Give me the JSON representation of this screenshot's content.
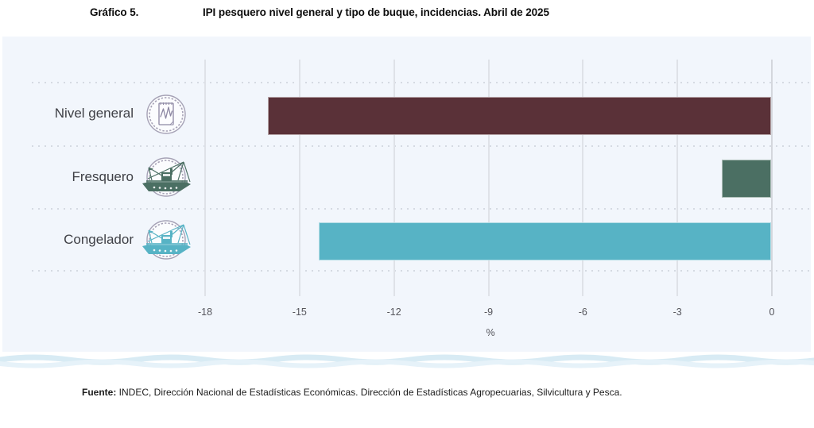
{
  "header": {
    "label": "Gráfico 5.",
    "title": "IPI pesquero nivel general y tipo de buque, incidencias. Abril de 2025"
  },
  "chart_data": {
    "type": "bar",
    "orientation": "horizontal",
    "title": "IPI pesquero nivel general y tipo de buque, incidencias. Abril de 2025",
    "categories": [
      "Nivel general",
      "Fresquero",
      "Congelador"
    ],
    "values": [
      -16.0,
      -1.6,
      -14.4
    ],
    "bar_colors": [
      "#5a3138",
      "#4b6f63",
      "#57b3c5"
    ],
    "icons": [
      "report-chart-icon",
      "fresquero-boat-icon",
      "congelador-boat-icon"
    ],
    "xlabel": "%",
    "xlim": [
      -18,
      0
    ],
    "xticks": [
      -18,
      -15,
      -12,
      -9,
      -6,
      -3,
      0
    ],
    "grid": {
      "vertical_lines": true,
      "horizontal_dotted_separators": true
    },
    "legend": false
  },
  "footer": {
    "source_label": "Fuente:",
    "source_text": " INDEC, Dirección Nacional de Estadísticas Económicas. Dirección de Estadísticas Agropecuarias, Silvicultura y Pesca."
  }
}
